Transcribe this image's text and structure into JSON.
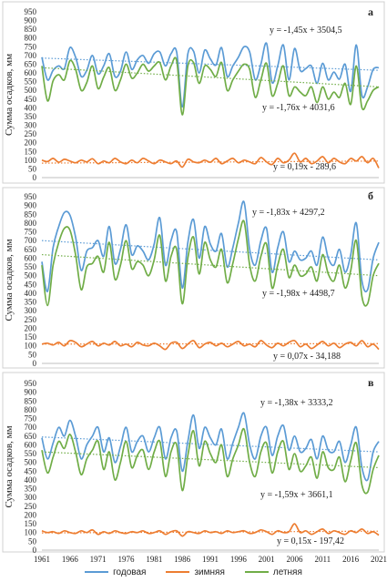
{
  "chart_data": [
    {
      "type": "line",
      "panel_letter": "а",
      "ylabel": "Сумма осадков, мм",
      "ylim": [
        0,
        950
      ],
      "yticks": [
        0,
        50,
        100,
        150,
        200,
        250,
        300,
        350,
        400,
        450,
        500,
        550,
        600,
        650,
        700,
        750,
        800,
        850,
        900,
        950
      ],
      "x": [
        1961,
        1962,
        1963,
        1964,
        1965,
        1966,
        1967,
        1968,
        1969,
        1970,
        1971,
        1972,
        1973,
        1974,
        1975,
        1976,
        1977,
        1978,
        1979,
        1980,
        1981,
        1982,
        1983,
        1984,
        1985,
        1986,
        1987,
        1988,
        1989,
        1990,
        1991,
        1992,
        1993,
        1994,
        1995,
        1996,
        1997,
        1998,
        1999,
        2000,
        2001,
        2002,
        2003,
        2004,
        2005,
        2006,
        2007,
        2008,
        2009,
        2010,
        2011,
        2012,
        2013,
        2014,
        2015,
        2016,
        2017,
        2018,
        2019,
        2020,
        2021
      ],
      "series": [
        {
          "name": "годовая",
          "color": "#5b9bd5",
          "values": [
            690,
            560,
            615,
            640,
            625,
            745,
            690,
            580,
            615,
            700,
            595,
            640,
            710,
            580,
            610,
            720,
            620,
            675,
            700,
            655,
            710,
            720,
            640,
            710,
            720,
            405,
            710,
            725,
            600,
            730,
            680,
            645,
            745,
            580,
            640,
            690,
            750,
            720,
            560,
            650,
            770,
            545,
            640,
            760,
            560,
            740,
            615,
            625,
            640,
            540,
            655,
            560,
            605,
            565,
            650,
            495,
            760,
            470,
            520,
            620,
            630
          ],
          "trend": {
            "label": "y = -1,45x + 3504,5",
            "start": 685,
            "end": 615
          }
        },
        {
          "name": "зимняя",
          "color": "#ed7d31",
          "values": [
            100,
            92,
            110,
            88,
            105,
            95,
            85,
            100,
            90,
            108,
            80,
            95,
            85,
            110,
            90,
            80,
            100,
            85,
            110,
            95,
            80,
            100,
            90,
            80,
            95,
            60,
            105,
            90,
            85,
            100,
            88,
            110,
            80,
            95,
            110,
            85,
            100,
            90,
            80,
            115,
            90,
            75,
            110,
            85,
            100,
            140,
            90,
            110,
            80,
            95,
            120,
            85,
            110,
            90,
            80,
            110,
            95,
            120,
            85,
            110,
            55
          ],
          "trend": {
            "label": "y = 0,19x - 289,6",
            "start": 83,
            "end": 95
          }
        },
        {
          "name": "летняя",
          "color": "#70ad47",
          "values": [
            640,
            440,
            555,
            590,
            560,
            670,
            620,
            500,
            545,
            640,
            510,
            575,
            630,
            500,
            560,
            650,
            570,
            600,
            650,
            610,
            640,
            660,
            560,
            640,
            670,
            360,
            640,
            660,
            540,
            640,
            620,
            580,
            660,
            500,
            560,
            610,
            650,
            620,
            460,
            560,
            655,
            470,
            540,
            640,
            470,
            520,
            490,
            470,
            520,
            430,
            520,
            450,
            490,
            460,
            540,
            420,
            640,
            400,
            440,
            500,
            520
          ],
          "trend": {
            "label": "y = -1,76x + 4031,6",
            "start": 630,
            "end": 520
          }
        }
      ]
    },
    {
      "type": "line",
      "panel_letter": "б",
      "ylabel": "Сумма осадков, мм",
      "ylim": [
        0,
        950
      ],
      "yticks": [
        0,
        50,
        100,
        150,
        200,
        250,
        300,
        350,
        400,
        450,
        500,
        550,
        600,
        650,
        700,
        750,
        800,
        850,
        900,
        950
      ],
      "x": [
        1961,
        1962,
        1963,
        1964,
        1965,
        1966,
        1967,
        1968,
        1969,
        1970,
        1971,
        1972,
        1973,
        1974,
        1975,
        1976,
        1977,
        1978,
        1979,
        1980,
        1981,
        1982,
        1983,
        1984,
        1985,
        1986,
        1987,
        1988,
        1989,
        1990,
        1991,
        1992,
        1993,
        1994,
        1995,
        1996,
        1997,
        1998,
        1999,
        2000,
        2001,
        2002,
        2003,
        2004,
        2005,
        2006,
        2007,
        2008,
        2009,
        2010,
        2011,
        2012,
        2013,
        2014,
        2015,
        2016,
        2017,
        2018,
        2019,
        2020,
        2021
      ],
      "series": [
        {
          "name": "годовая",
          "color": "#5b9bd5",
          "values": [
            580,
            410,
            660,
            780,
            860,
            845,
            720,
            530,
            640,
            660,
            700,
            610,
            780,
            570,
            650,
            790,
            620,
            670,
            640,
            590,
            680,
            830,
            560,
            700,
            750,
            430,
            690,
            820,
            600,
            780,
            680,
            640,
            740,
            550,
            660,
            800,
            920,
            650,
            560,
            700,
            770,
            520,
            660,
            750,
            580,
            640,
            590,
            600,
            640,
            560,
            720,
            600,
            560,
            650,
            520,
            620,
            800,
            470,
            420,
            600,
            690
          ],
          "trend": {
            "label": "y = -1,83x + 4297,2",
            "start": 700,
            "end": 590
          }
        },
        {
          "name": "зимняя",
          "color": "#ed7d31",
          "values": [
            110,
            115,
            105,
            120,
            100,
            130,
            120,
            95,
            110,
            125,
            100,
            115,
            105,
            125,
            100,
            110,
            95,
            120,
            105,
            100,
            115,
            100,
            80,
            115,
            120,
            85,
            110,
            130,
            90,
            110,
            120,
            100,
            115,
            95,
            110,
            125,
            100,
            110,
            95,
            130,
            105,
            90,
            115,
            100,
            120,
            130,
            95,
            110,
            85,
            105,
            125,
            100,
            115,
            90,
            110,
            120,
            100,
            130,
            95,
            110,
            80
          ],
          "trend": {
            "label": "y = 0,07x - 34,188",
            "start": 110,
            "end": 113
          }
        },
        {
          "name": "летняя",
          "color": "#70ad47",
          "values": [
            560,
            330,
            560,
            690,
            770,
            760,
            620,
            420,
            550,
            570,
            610,
            520,
            690,
            480,
            560,
            700,
            540,
            580,
            560,
            500,
            590,
            730,
            470,
            610,
            650,
            340,
            600,
            720,
            510,
            690,
            590,
            550,
            650,
            460,
            570,
            710,
            810,
            560,
            470,
            610,
            680,
            430,
            560,
            650,
            490,
            560,
            500,
            510,
            550,
            470,
            620,
            510,
            470,
            560,
            430,
            530,
            700,
            380,
            340,
            500,
            570
          ],
          "trend": {
            "label": "y = -1,98x + 4498,7",
            "start": 620,
            "end": 500
          }
        }
      ]
    },
    {
      "type": "line",
      "panel_letter": "в",
      "ylabel": "Сумма осадков, мм",
      "ylim": [
        0,
        950
      ],
      "yticks": [
        0,
        50,
        100,
        150,
        200,
        250,
        300,
        350,
        400,
        450,
        500,
        550,
        600,
        650,
        700,
        750,
        800,
        850,
        900,
        950
      ],
      "xticks": [
        1961,
        1966,
        1971,
        1976,
        1981,
        1986,
        1991,
        1996,
        2001,
        2006,
        2011,
        2016,
        2021
      ],
      "x": [
        1961,
        1962,
        1963,
        1964,
        1965,
        1966,
        1967,
        1968,
        1969,
        1970,
        1971,
        1972,
        1973,
        1974,
        1975,
        1976,
        1977,
        1978,
        1979,
        1980,
        1981,
        1982,
        1983,
        1984,
        1985,
        1986,
        1987,
        1988,
        1989,
        1990,
        1991,
        1992,
        1993,
        1994,
        1995,
        1996,
        1997,
        1998,
        1999,
        2000,
        2001,
        2002,
        2003,
        2004,
        2005,
        2006,
        2007,
        2008,
        2009,
        2010,
        2011,
        2012,
        2013,
        2014,
        2015,
        2016,
        2017,
        2018,
        2019,
        2020,
        2021
      ],
      "series": [
        {
          "name": "годовая",
          "color": "#5b9bd5",
          "values": [
            640,
            520,
            610,
            700,
            650,
            740,
            650,
            520,
            600,
            650,
            700,
            560,
            640,
            500,
            590,
            700,
            560,
            620,
            650,
            560,
            640,
            700,
            520,
            640,
            680,
            450,
            620,
            770,
            580,
            700,
            640,
            600,
            690,
            520,
            610,
            700,
            780,
            600,
            520,
            650,
            700,
            540,
            650,
            710,
            570,
            650,
            560,
            580,
            630,
            520,
            650,
            570,
            560,
            620,
            500,
            600,
            700,
            470,
            400,
            560,
            620
          ],
          "trend": {
            "label": "y = -1,38x + 3333,2",
            "start": 645,
            "end": 560
          }
        },
        {
          "name": "зимняя",
          "color": "#ed7d31",
          "values": [
            110,
            100,
            105,
            95,
            110,
            100,
            95,
            110,
            100,
            115,
            90,
            105,
            95,
            110,
            100,
            95,
            105,
            100,
            110,
            95,
            100,
            110,
            90,
            105,
            110,
            80,
            105,
            100,
            95,
            110,
            100,
            105,
            95,
            110,
            100,
            105,
            110,
            95,
            100,
            115,
            105,
            90,
            110,
            100,
            105,
            150,
            100,
            110,
            90,
            105,
            120,
            95,
            110,
            100,
            90,
            110,
            100,
            120,
            95,
            105,
            85
          ],
          "trend": {
            "label": "y = 0,15x - 197,42",
            "start": 98,
            "end": 108
          }
        },
        {
          "name": "летняя",
          "color": "#70ad47",
          "values": [
            570,
            440,
            530,
            620,
            580,
            660,
            560,
            430,
            520,
            570,
            620,
            460,
            560,
            400,
            500,
            620,
            470,
            540,
            570,
            460,
            560,
            620,
            420,
            560,
            600,
            340,
            540,
            680,
            480,
            620,
            550,
            500,
            600,
            420,
            520,
            600,
            690,
            500,
            420,
            560,
            610,
            440,
            560,
            620,
            460,
            550,
            450,
            480,
            530,
            410,
            560,
            470,
            460,
            530,
            390,
            510,
            610,
            370,
            330,
            460,
            540
          ],
          "trend": {
            "label": "y = -1,59x + 3661,1",
            "start": 560,
            "end": 470
          }
        }
      ]
    }
  ]
}
